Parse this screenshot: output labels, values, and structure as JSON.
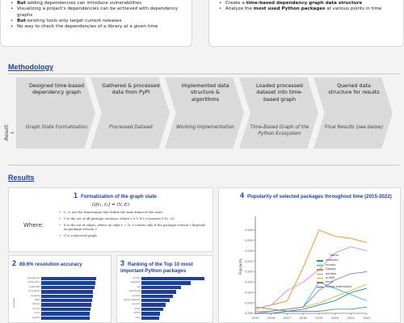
{
  "top_left": {
    "items": [
      {
        "bold": "But",
        "rest": " adding dependencies can introduce vulnerabilities"
      },
      {
        "bold": "",
        "rest": "Visualizing a project's dependencies can be achieved with dependency graphs"
      },
      {
        "bold": "But",
        "rest": " existing tools only target current releases"
      },
      {
        "bold": "",
        "rest": "No way to check the dependencies of a library at a given time"
      }
    ]
  },
  "top_right": {
    "item1": {
      "pre": "Create a ",
      "bold": "time-based dependency graph data structure",
      "post": ""
    },
    "item2": {
      "pre": "Analyze the ",
      "bold": "most used Python packages",
      "post": " at various points in time"
    }
  },
  "methodology": {
    "title": "Methodology",
    "result_label": "Result:",
    "steps": [
      {
        "label": "Designed time-based dependency graph",
        "result": "Graph State Formalization"
      },
      {
        "label": "Gathered & processed data from PyPI",
        "result": "Processed Dataset"
      },
      {
        "label": "Implemented data structure & algorithms",
        "result": "Working Implementation"
      },
      {
        "label": "Loaded processed dataset into time-based graph",
        "result": "Time-Based Graph of the Python Ecosystem"
      },
      {
        "label": "Queried data structure for results",
        "result": "Final Results (see below)"
      }
    ]
  },
  "results": {
    "title": "Results",
    "formal": {
      "num": "1",
      "title": "Formalization of the graph state",
      "formula": "G[t₁, t₂] = (V, E)",
      "where": "Where:",
      "defs": [
        "t₁, t₂ are the timestamps that define the time frame of the state",
        "V is the set of all package versions, where v ∈ V if t_v,creation ∈ [t₁, t₂]",
        "E is the set of edges, where an edge e = (v, v′) exists only if the package version v depends on package version v′",
        "G is a directed graph"
      ]
    },
    "accuracy": {
      "num": "2",
      "title": "89.6% resolution accuracy",
      "axis_label": "package",
      "rows": [
        {
          "name": "pandas-dev",
          "value": 0.97
        },
        {
          "name": "scikit-learn",
          "value": 0.95
        },
        {
          "name": "matplotlib",
          "value": 0.94
        },
        {
          "name": "tensorflow",
          "value": 0.92
        },
        {
          "name": "requests",
          "value": 0.91
        },
        {
          "name": "flask",
          "value": 0.9
        },
        {
          "name": "django",
          "value": 0.89
        },
        {
          "name": "numpy",
          "value": 0.87
        },
        {
          "name": "scipy",
          "value": 0.86
        },
        {
          "name": "jupyter",
          "value": 0.85
        }
      ]
    },
    "ranking": {
      "num": "3",
      "title": "Ranking of the Top 10 most important Python packages",
      "rows": [
        {
          "name": "numpy",
          "value": 1.0
        },
        {
          "name": "requests",
          "value": 0.78
        },
        {
          "name": "six",
          "value": 0.63
        },
        {
          "name": "setuptools",
          "value": 0.55
        },
        {
          "name": "pandas",
          "value": 0.5
        },
        {
          "name": "python-dateutil",
          "value": 0.45
        },
        {
          "name": "pyyaml",
          "value": 0.38
        },
        {
          "name": "scipy",
          "value": 0.34
        },
        {
          "name": "urllib3",
          "value": 0.3
        },
        {
          "name": "click",
          "value": 0.28
        }
      ]
    }
  },
  "chart_data": {
    "type": "line",
    "num": "4",
    "title": "Popularity of selected packages throughout time (2015-2022)",
    "xlabel": "",
    "ylabel": "Popularity",
    "x": [
      2015,
      2016,
      2017,
      2018,
      2019,
      2020,
      2021,
      2022
    ],
    "ylim": [
      0.0,
      0.045
    ],
    "yticks": [
      "0.000",
      "0.005",
      "0.010",
      "0.015",
      "0.020",
      "0.025",
      "0.030",
      "0.035",
      "0.040"
    ],
    "grid": false,
    "legend_title": "Name",
    "legend_position": "right",
    "series": [
      {
        "name": "requests",
        "color": "#2ca02c",
        "values": [
          0.003,
          0.002,
          0.001,
          0.001,
          0.001,
          0.002,
          0.002,
          0.003
        ]
      },
      {
        "name": "numpy",
        "color": "#17becf",
        "values": [
          0.001,
          0.001,
          0.002,
          0.003,
          0.015,
          0.012,
          0.009,
          0.006
        ]
      },
      {
        "name": "Django",
        "color": "#ff7f0e",
        "values": [
          0.002,
          0.004,
          0.006,
          0.022,
          0.04,
          0.037,
          0.036,
          0.034
        ]
      },
      {
        "name": "pandas",
        "color": "#e377c2",
        "values": [
          0.002,
          0.004,
          0.011,
          0.015,
          0.021,
          0.029,
          0.032,
          0.03
        ]
      },
      {
        "name": "urllib3",
        "color": "#bcbd22",
        "values": [
          0.001,
          0.001,
          0.002,
          0.003,
          0.005,
          0.008,
          0.011,
          0.014
        ]
      },
      {
        "name": "torch",
        "color": "#9467bd",
        "values": [
          0.0,
          0.001,
          0.002,
          0.003,
          0.011,
          0.016,
          0.019,
          0.02
        ]
      },
      {
        "name": "typing-extensions",
        "color": "#1f77b4",
        "values": [
          0.0,
          0.0,
          0.001,
          0.002,
          0.004,
          0.006,
          0.01,
          0.012
        ]
      }
    ]
  }
}
